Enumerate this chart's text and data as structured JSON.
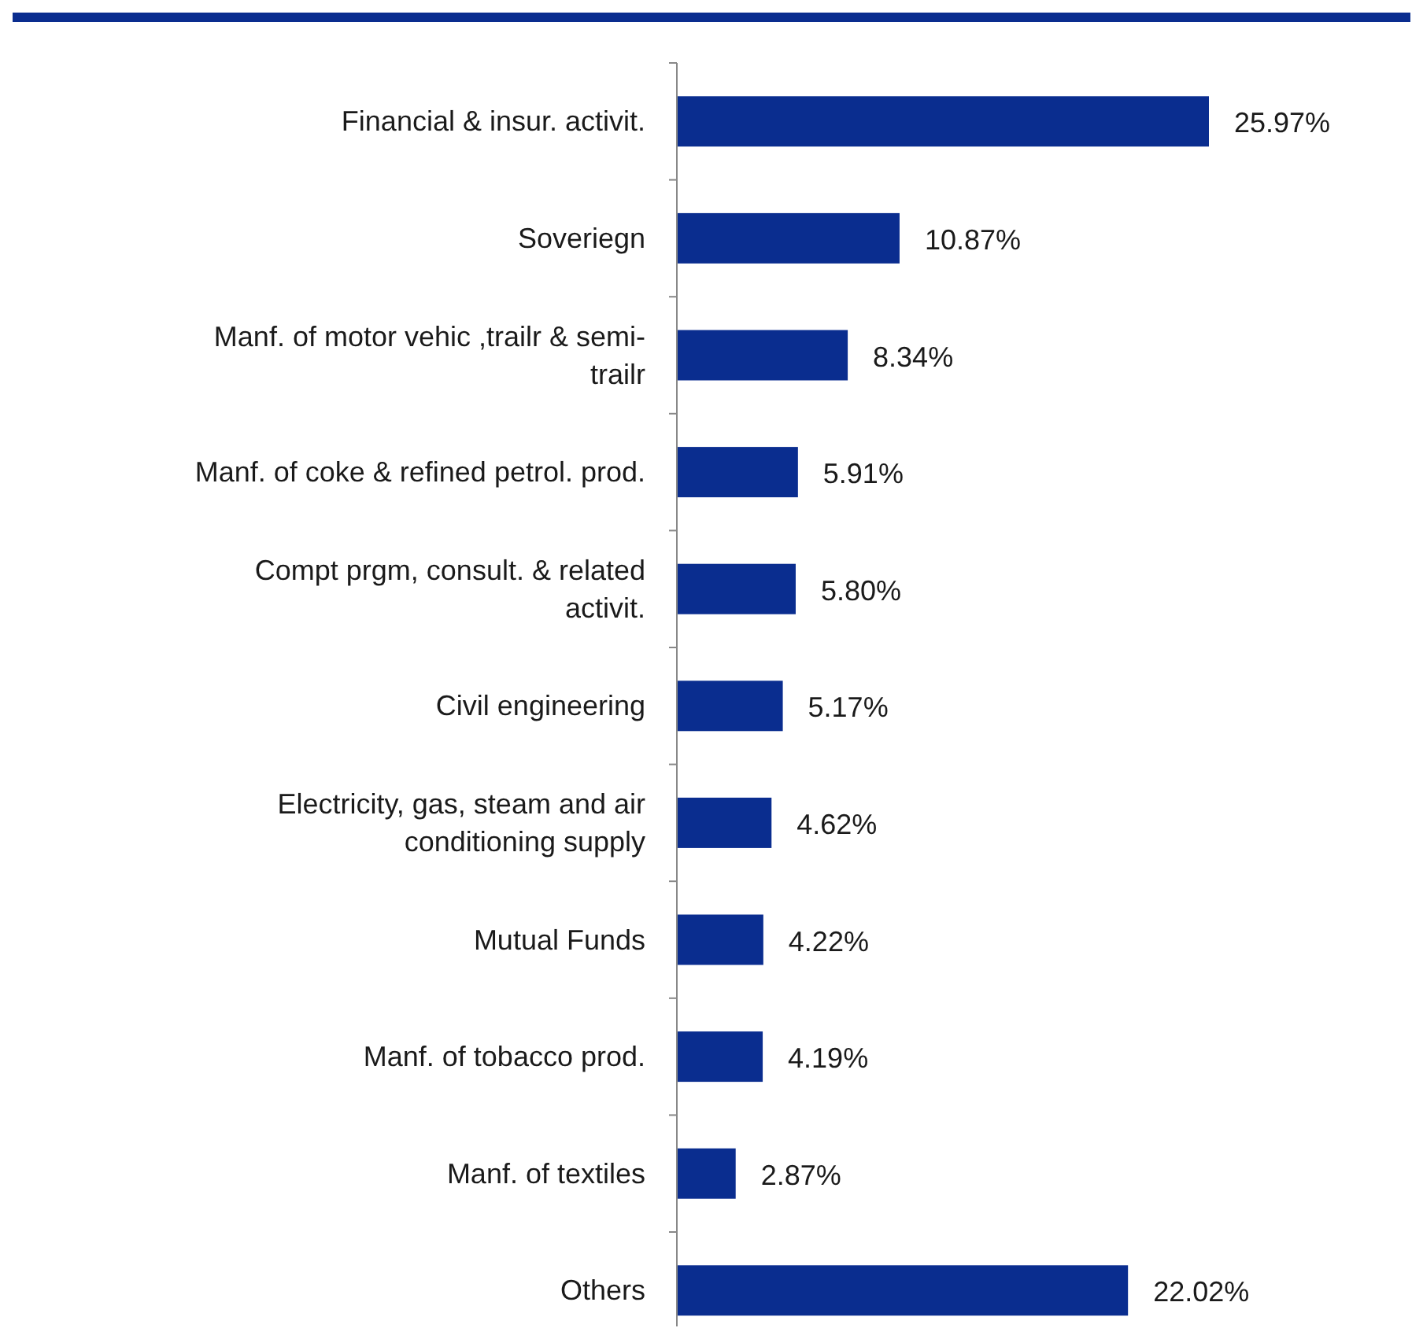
{
  "chart_data": {
    "type": "bar",
    "orientation": "horizontal",
    "categories": [
      "Financial & insur. activit.",
      "Soveriegn",
      "Manf. of motor vehic ,trailr & semi-trailr",
      "Manf. of coke & refined petrol. prod.",
      "Compt prgm, consult. & related activit.",
      "Civil engineering",
      "Electricity, gas, steam and air conditioning supply",
      "Mutual Funds",
      "Manf. of tobacco prod.",
      "Manf. of textiles",
      "Others"
    ],
    "values": [
      25.97,
      10.87,
      8.34,
      5.91,
      5.8,
      5.17,
      4.62,
      4.22,
      4.19,
      2.87,
      22.02
    ],
    "value_labels": [
      "25.97%",
      "10.87%",
      "8.34%",
      "5.91%",
      "5.80%",
      "5.17%",
      "4.62%",
      "4.22%",
      "4.19%",
      "2.87%",
      "22.02%"
    ],
    "color": "#0a2d8f"
  }
}
